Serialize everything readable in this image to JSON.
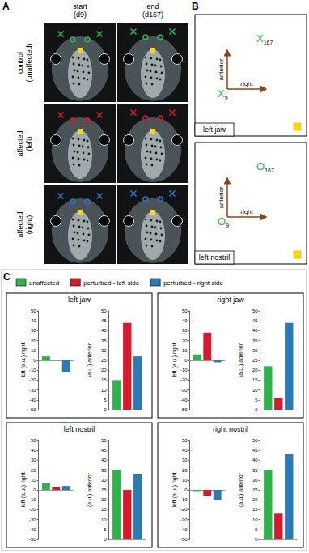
{
  "figure": {
    "panel_a": {
      "label": "A",
      "columns": [
        [
          "start",
          "(d9)"
        ],
        [
          "end",
          "(d167)"
        ]
      ],
      "rows": [
        {
          "label": [
            "control",
            "(unaffected)"
          ],
          "color": "#2db34a"
        },
        {
          "label": [
            "affected",
            "(left)"
          ],
          "color": "#d7192e"
        },
        {
          "label": [
            "affected",
            "(right)"
          ],
          "color": "#2a6fd6"
        }
      ]
    },
    "panel_b": {
      "label": "B",
      "boxes": [
        {
          "title": "left jaw",
          "y_arrow": "anterior",
          "x_arrow": "right",
          "symbol": "X",
          "start": "9",
          "end": "167",
          "color": "#2db34a"
        },
        {
          "title": "left nostril",
          "y_arrow": "anterior",
          "x_arrow": "right",
          "symbol": "O",
          "start": "9",
          "end": "167",
          "color": "#2db34a"
        }
      ]
    },
    "panel_c": {
      "label": "C"
    }
  },
  "chart_data": [
    {
      "type": "bar",
      "title": "left jaw",
      "ylabel": "left (a.u.) right",
      "categories": [
        null
      ],
      "series": [
        {
          "name": "unaffected",
          "color": "#2db34a",
          "values": [
            4
          ]
        },
        {
          "name": "perturbed - left side",
          "color": "#d7192e",
          "values": [
            0
          ]
        },
        {
          "name": "perturbed - right side",
          "color": "#2a7ab8",
          "values": [
            -12
          ]
        }
      ],
      "ylim": [
        -50,
        50
      ],
      "yticks": [
        -50,
        -40,
        -30,
        -20,
        -10,
        0,
        10,
        20,
        30,
        40,
        50
      ],
      "tick_labels": "y",
      "grid": false
    },
    {
      "type": "bar",
      "title": "left jaw",
      "ylabel": "(a.u.) anterior",
      "categories": [
        null
      ],
      "series": [
        {
          "name": "unaffected",
          "color": "#2db34a",
          "values": [
            15
          ]
        },
        {
          "name": "perturbed - left side",
          "color": "#d7192e",
          "values": [
            44
          ]
        },
        {
          "name": "perturbed - right side",
          "color": "#2a7ab8",
          "values": [
            27
          ]
        }
      ],
      "ylim": [
        0,
        50
      ],
      "yticks": [
        0,
        5,
        10,
        15,
        20,
        25,
        30,
        35,
        40,
        45,
        50
      ],
      "tick_labels": "y",
      "grid": false
    },
    {
      "type": "bar",
      "title": "right jaw",
      "ylabel": "left (a.u.) right",
      "categories": [
        null
      ],
      "series": [
        {
          "name": "unaffected",
          "color": "#2db34a",
          "values": [
            6
          ]
        },
        {
          "name": "perturbed - left side",
          "color": "#d7192e",
          "values": [
            28
          ]
        },
        {
          "name": "perturbed - right side",
          "color": "#2a7ab8",
          "values": [
            -2
          ]
        }
      ],
      "ylim": [
        -50,
        50
      ],
      "yticks": [
        -50,
        -40,
        -30,
        -20,
        -10,
        0,
        10,
        20,
        30,
        40,
        50
      ],
      "tick_labels": "y",
      "grid": false
    },
    {
      "type": "bar",
      "title": "right jaw",
      "ylabel": "(a.u.) anterior",
      "categories": [
        null
      ],
      "series": [
        {
          "name": "unaffected",
          "color": "#2db34a",
          "values": [
            22
          ]
        },
        {
          "name": "perturbed - left side",
          "color": "#d7192e",
          "values": [
            6
          ]
        },
        {
          "name": "perturbed - right side",
          "color": "#2a7ab8",
          "values": [
            44
          ]
        }
      ],
      "ylim": [
        0,
        50
      ],
      "yticks": [
        0,
        5,
        10,
        15,
        20,
        25,
        30,
        35,
        40,
        45,
        50
      ],
      "tick_labels": "y",
      "grid": false
    },
    {
      "type": "bar",
      "title": "left nostril",
      "ylabel": "left (a.u.) right",
      "categories": [
        null
      ],
      "series": [
        {
          "name": "unaffected",
          "color": "#2db34a",
          "values": [
            7
          ]
        },
        {
          "name": "perturbed - left side",
          "color": "#d7192e",
          "values": [
            3
          ]
        },
        {
          "name": "perturbed - right side",
          "color": "#2a7ab8",
          "values": [
            4
          ]
        }
      ],
      "ylim": [
        -50,
        50
      ],
      "yticks": [
        -50,
        -40,
        -30,
        -20,
        -10,
        0,
        10,
        20,
        30,
        40,
        50
      ],
      "tick_labels": "y",
      "grid": false
    },
    {
      "type": "bar",
      "title": "left nostril",
      "ylabel": "(a.u.) anterior",
      "categories": [
        null
      ],
      "series": [
        {
          "name": "unaffected",
          "color": "#2db34a",
          "values": [
            35
          ]
        },
        {
          "name": "perturbed - left side",
          "color": "#d7192e",
          "values": [
            25
          ]
        },
        {
          "name": "perturbed - right side",
          "color": "#2a7ab8",
          "values": [
            33
          ]
        }
      ],
      "ylim": [
        0,
        50
      ],
      "yticks": [
        0,
        5,
        10,
        15,
        20,
        25,
        30,
        35,
        40,
        45,
        50
      ],
      "tick_labels": "y",
      "grid": false
    },
    {
      "type": "bar",
      "title": "right nostril",
      "ylabel": "left (a.u.) right",
      "categories": [
        null
      ],
      "series": [
        {
          "name": "unaffected",
          "color": "#2db34a",
          "values": [
            -2
          ]
        },
        {
          "name": "perturbed - left side",
          "color": "#d7192e",
          "values": [
            -6
          ]
        },
        {
          "name": "perturbed - right side",
          "color": "#2a7ab8",
          "values": [
            -10
          ]
        }
      ],
      "ylim": [
        -50,
        50
      ],
      "yticks": [
        -50,
        -40,
        -30,
        -20,
        -10,
        0,
        10,
        20,
        30,
        40,
        50
      ],
      "tick_labels": "y",
      "grid": false
    },
    {
      "type": "bar",
      "title": "right nostril",
      "ylabel": "(a.u.) anterior",
      "categories": [
        null
      ],
      "series": [
        {
          "name": "unaffected",
          "color": "#2db34a",
          "values": [
            35
          ]
        },
        {
          "name": "perturbed - left side",
          "color": "#d7192e",
          "values": [
            13
          ]
        },
        {
          "name": "perturbed - right side",
          "color": "#2a7ab8",
          "values": [
            43
          ]
        }
      ],
      "ylim": [
        0,
        50
      ],
      "yticks": [
        0,
        5,
        10,
        15,
        20,
        25,
        30,
        35,
        40,
        45,
        50
      ],
      "tick_labels": "y",
      "grid": false
    }
  ]
}
